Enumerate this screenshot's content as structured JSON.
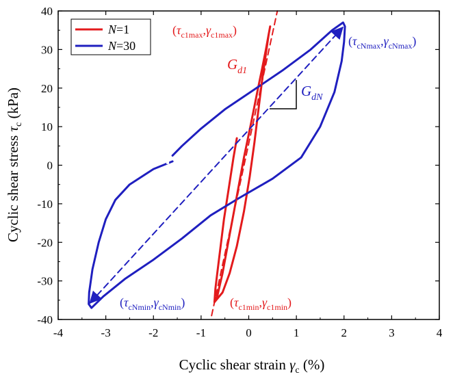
{
  "chart_data": {
    "type": "line",
    "xlabel": {
      "text": "Cyclic shear strain ",
      "symbol": "γ",
      "sub": "c",
      "unit": " (%)"
    },
    "ylabel": {
      "text": "Cyclic shear stress ",
      "symbol": "τ",
      "sub": "c",
      "unit": " (kPa)"
    },
    "xlim": [
      -4,
      4
    ],
    "ylim": [
      -40,
      40
    ],
    "xticks": [
      -4,
      -3,
      -2,
      -1,
      0,
      1,
      2,
      3,
      4
    ],
    "yticks": [
      -40,
      -30,
      -20,
      -10,
      0,
      10,
      20,
      30,
      40
    ],
    "grid": false,
    "legend_position": "top-left",
    "colors": {
      "n1": "#e31a1c",
      "n30": "#1f1fbf"
    },
    "series": [
      {
        "name": "N=1",
        "legend_label": {
          "italic": "N",
          "rest": "=1"
        },
        "color": "#e31a1c",
        "style": "solid",
        "points": [
          [
            -0.25,
            7
          ],
          [
            -0.32,
            2
          ],
          [
            -0.42,
            -6
          ],
          [
            -0.52,
            -14
          ],
          [
            -0.6,
            -22
          ],
          [
            -0.66,
            -28
          ],
          [
            -0.7,
            -32
          ],
          [
            -0.72,
            -35.5
          ],
          [
            -0.66,
            -34
          ],
          [
            -0.55,
            -28
          ],
          [
            -0.4,
            -18
          ],
          [
            -0.25,
            -8
          ],
          [
            -0.1,
            2
          ],
          [
            0.05,
            11
          ],
          [
            0.18,
            19
          ],
          [
            0.28,
            25
          ],
          [
            0.36,
            30
          ],
          [
            0.42,
            34
          ],
          [
            0.45,
            36
          ],
          [
            0.42,
            34
          ],
          [
            0.36,
            29
          ],
          [
            0.28,
            22
          ],
          [
            0.2,
            14
          ],
          [
            0.12,
            6
          ],
          [
            0.02,
            -3
          ],
          [
            -0.1,
            -12
          ],
          [
            -0.25,
            -21
          ],
          [
            -0.4,
            -28
          ],
          [
            -0.55,
            -33
          ],
          [
            -0.72,
            -35.5
          ]
        ]
      },
      {
        "name": "N=30",
        "legend_label": {
          "italic": "N",
          "rest": "=30"
        },
        "color": "#1f1fbf",
        "style": "solid",
        "points": [
          [
            -1.6,
            1
          ],
          [
            -2.0,
            -1
          ],
          [
            -2.5,
            -5
          ],
          [
            -2.8,
            -9
          ],
          [
            -3.0,
            -14
          ],
          [
            -3.15,
            -20
          ],
          [
            -3.28,
            -27
          ],
          [
            -3.35,
            -33
          ],
          [
            -3.36,
            -36
          ],
          [
            -3.3,
            -37
          ],
          [
            -3.05,
            -34
          ],
          [
            -2.6,
            -29.5
          ],
          [
            -2.0,
            -24.5
          ],
          [
            -1.4,
            -19
          ],
          [
            -0.8,
            -13
          ],
          [
            -0.2,
            -8.5
          ],
          [
            0.5,
            -3.5
          ],
          [
            1.1,
            2
          ],
          [
            1.5,
            10
          ],
          [
            1.8,
            19
          ],
          [
            1.95,
            27
          ],
          [
            2.0,
            32
          ],
          [
            2.02,
            36
          ],
          [
            1.98,
            37
          ],
          [
            1.75,
            35
          ],
          [
            1.3,
            30
          ],
          [
            0.7,
            24.5
          ],
          [
            0.1,
            19.5
          ],
          [
            -0.5,
            14.5
          ],
          [
            -1.0,
            9.5
          ],
          [
            -1.4,
            5
          ],
          [
            -1.6,
            2.5
          ]
        ],
        "gaps_at_x": [
          -1.7,
          -1.85
        ]
      },
      {
        "name": "",
        "role": "secant-N1",
        "color": "#e31a1c",
        "style": "dashed",
        "points": [
          [
            -0.78,
            -39
          ],
          [
            0.6,
            40
          ]
        ]
      },
      {
        "name": "",
        "role": "secant-N30",
        "color": "#1f1fbf",
        "style": "dashed",
        "arrows": "both",
        "points": [
          [
            -3.33,
            -35.7
          ],
          [
            1.97,
            35.7
          ]
        ]
      }
    ],
    "annotations": {
      "n1_max": {
        "open": "(",
        "tau": "τ",
        "tau_sub": "c1max",
        "sep": ",",
        "gamma": "γ",
        "gamma_sub": "c1max",
        "close": ")",
        "color": "#e31a1c"
      },
      "n1_min": {
        "open": "(",
        "tau": "τ",
        "tau_sub": "c1min",
        "sep": ",",
        "gamma": "γ",
        "gamma_sub": "c1min",
        "close": ")",
        "color": "#e31a1c"
      },
      "nN_max": {
        "open": "(",
        "tau": "τ",
        "tau_sub": "cNmax",
        "sep": ",",
        "gamma": "γ",
        "gamma_sub": "cNmax",
        "close": ")",
        "color": "#1f1fbf"
      },
      "nN_min": {
        "open": "(",
        "tau": "τ",
        "tau_sub": "cNmin",
        "sep": ",",
        "gamma": "γ",
        "gamma_sub": "cNmin",
        "close": ")",
        "color": "#1f1fbf"
      },
      "gd1": {
        "main": "G",
        "sub": "d1",
        "color": "#e31a1c"
      },
      "gdn": {
        "main": "G",
        "sub": "dN",
        "color": "#1f1fbf"
      }
    }
  }
}
